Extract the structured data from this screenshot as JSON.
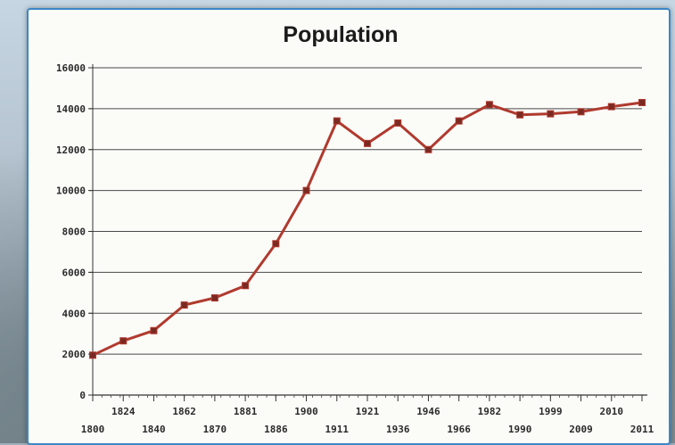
{
  "chart_data": {
    "type": "line",
    "title": "Population",
    "xlabel": "",
    "ylabel": "",
    "ylim": [
      0,
      16000
    ],
    "yticks": [
      0,
      2000,
      4000,
      6000,
      8000,
      10000,
      12000,
      14000,
      16000
    ],
    "grid": true,
    "legend": "none",
    "line_color": "#b03a2e",
    "x": [
      "1800",
      "1824",
      "1840",
      "1862",
      "1870",
      "1881",
      "1886",
      "1900",
      "1911",
      "1921",
      "1936",
      "1946",
      "1966",
      "1982",
      "1990",
      "1999",
      "2009",
      "2010",
      "2011"
    ],
    "values": [
      1950,
      2650,
      3150,
      4400,
      4750,
      5350,
      7400,
      10000,
      13400,
      12300,
      13300,
      12000,
      13400,
      14200,
      13700,
      13750,
      13850,
      14100,
      14300
    ]
  }
}
